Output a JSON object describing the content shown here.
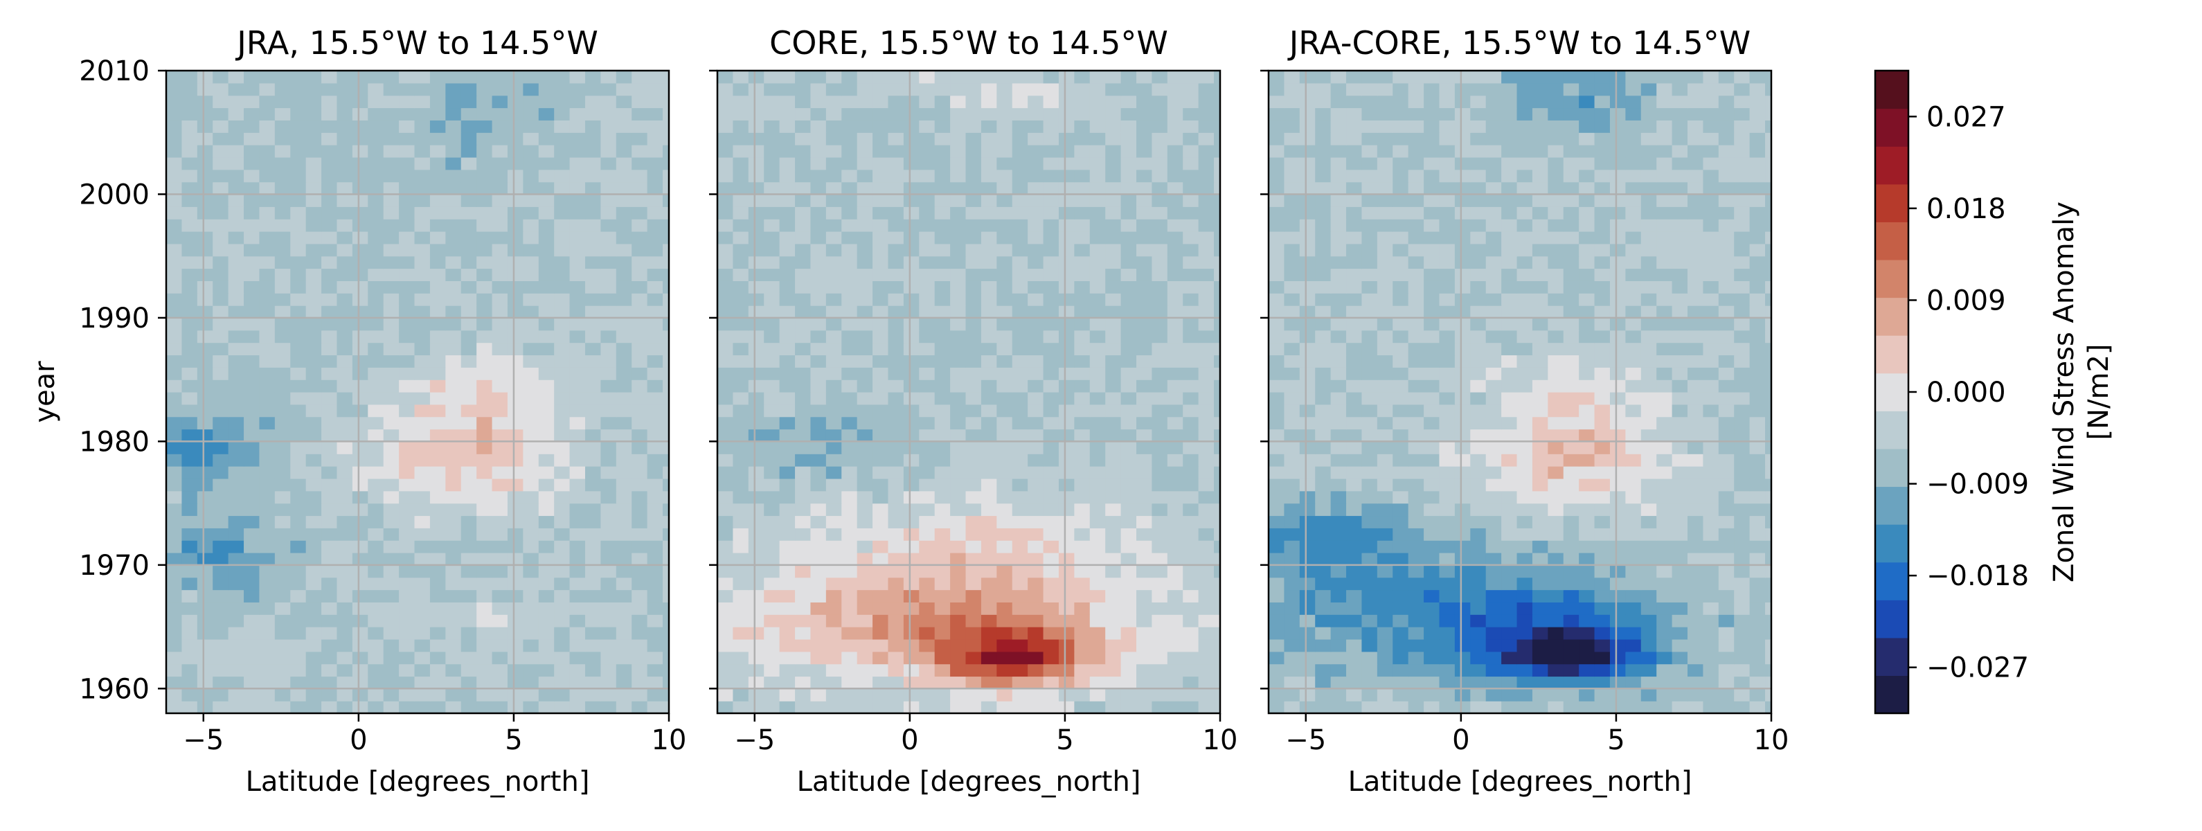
{
  "chart_data": {
    "type": "heatmap",
    "figure": {
      "panels": [
        {
          "title": "JRA, 15.5°W to 14.5°W",
          "xlabel": "Latitude [degrees_north]",
          "ylabel": "year",
          "xlim": [
            -6.2,
            10
          ],
          "ylim": [
            1958,
            2010
          ],
          "xticks": [
            -5,
            0,
            5,
            10
          ],
          "yticks": [
            1960,
            1970,
            1980,
            1990,
            2000,
            2010
          ],
          "grid": true,
          "blobs": [
            {
              "lat": 3.5,
              "year": 1980.5,
              "v": 0.008,
              "slat": 2.0,
              "syear": 3.0
            },
            {
              "lat": 2.8,
              "year": 1977.5,
              "v": 0.006,
              "slat": 2.3,
              "syear": 3.0
            },
            {
              "lat": 3.8,
              "year": 1984.5,
              "v": 0.005,
              "slat": 1.6,
              "syear": 2.0
            },
            {
              "lat": -5.0,
              "year": 1979.5,
              "v": -0.012,
              "slat": 1.3,
              "syear": 1.6
            },
            {
              "lat": -4.5,
              "year": 1971.5,
              "v": -0.007,
              "slat": 1.5,
              "syear": 2.5
            },
            {
              "lat": 4.5,
              "year": 2006.5,
              "v": -0.005,
              "slat": 1.6,
              "syear": 3.0
            },
            {
              "lat": 3.0,
              "year": 1966.0,
              "v": 0.004,
              "slat": 2.0,
              "syear": 1.5
            },
            {
              "lat": -4.0,
              "year": 1962.0,
              "v": 0.004,
              "slat": 1.5,
              "syear": 1.0
            }
          ]
        },
        {
          "title": "CORE, 15.5°W to 14.5°W",
          "xlabel": "Latitude [degrees_north]",
          "xlim": [
            -6.2,
            10
          ],
          "ylim": [
            1958,
            2010
          ],
          "xticks": [
            -5,
            0,
            5,
            10
          ],
          "yticks": [
            1960,
            1970,
            1980,
            1990,
            2000,
            2010
          ],
          "grid": true,
          "blobs": [
            {
              "lat": 3.5,
              "year": 1962.5,
              "v": 0.025,
              "slat": 1.6,
              "syear": 1.6
            },
            {
              "lat": 2.2,
              "year": 1965.0,
              "v": 0.012,
              "slat": 3.5,
              "syear": 3.5
            },
            {
              "lat": -2.0,
              "year": 1965.5,
              "v": 0.007,
              "slat": 4.0,
              "syear": 3.0
            },
            {
              "lat": 2.0,
              "year": 1971.5,
              "v": 0.006,
              "slat": 4.0,
              "syear": 4.0
            },
            {
              "lat": -3.0,
              "year": 1979.5,
              "v": -0.005,
              "slat": 2.5,
              "syear": 2.0
            },
            {
              "lat": 3.0,
              "year": 2008.5,
              "v": 0.004,
              "slat": 2.5,
              "syear": 1.5
            }
          ]
        },
        {
          "title": "JRA-CORE, 15.5°W to 14.5°W",
          "xlabel": "Latitude [degrees_north]",
          "xlim": [
            -6.2,
            10
          ],
          "ylim": [
            1958,
            2010
          ],
          "xticks": [
            -5,
            0,
            5,
            10
          ],
          "yticks": [
            1960,
            1970,
            1980,
            1990,
            2000,
            2010
          ],
          "grid": true,
          "blobs": [
            {
              "lat": 3.5,
              "year": 1962.8,
              "v": -0.024,
              "slat": 1.6,
              "syear": 1.6
            },
            {
              "lat": 2.5,
              "year": 1965.0,
              "v": -0.012,
              "slat": 3.0,
              "syear": 3.0
            },
            {
              "lat": -2.5,
              "year": 1967.0,
              "v": -0.008,
              "slat": 4.0,
              "syear": 4.0
            },
            {
              "lat": -4.5,
              "year": 1972.0,
              "v": -0.009,
              "slat": 2.0,
              "syear": 2.0
            },
            {
              "lat": 4.0,
              "year": 1980.5,
              "v": 0.009,
              "slat": 1.8,
              "syear": 2.5
            },
            {
              "lat": 3.0,
              "year": 1977.5,
              "v": 0.007,
              "slat": 2.5,
              "syear": 2.5
            },
            {
              "lat": 3.5,
              "year": 1985.0,
              "v": 0.005,
              "slat": 2.0,
              "syear": 2.0
            },
            {
              "lat": 3.8,
              "year": 2008.0,
              "v": -0.007,
              "slat": 1.8,
              "syear": 2.5
            }
          ]
        }
      ]
    },
    "colorbar": {
      "label_line1": "Zonal Wind Stress Anomaly",
      "label_line2": "[N/m2]",
      "vmin": -0.0315,
      "vmax": 0.0315,
      "step": 0.0045,
      "ticks": [
        -0.027,
        -0.018,
        -0.009,
        0.0,
        0.009,
        0.018,
        0.027
      ],
      "tick_labels": [
        "−0.027",
        "−0.018",
        "−0.009",
        "0.000",
        "0.009",
        "0.018",
        "0.027"
      ],
      "colors": [
        "#1c1d45",
        "#252c6e",
        "#1b4bb5",
        "#1f6cc6",
        "#3a8abd",
        "#6ba3bf",
        "#a0bec7",
        "#bccdd3",
        "#e0e0e2",
        "#e8c6be",
        "#dea895",
        "#d2846a",
        "#c55f46",
        "#b63a2b",
        "#9e1c26",
        "#7e1126",
        "#55101d"
      ]
    }
  }
}
